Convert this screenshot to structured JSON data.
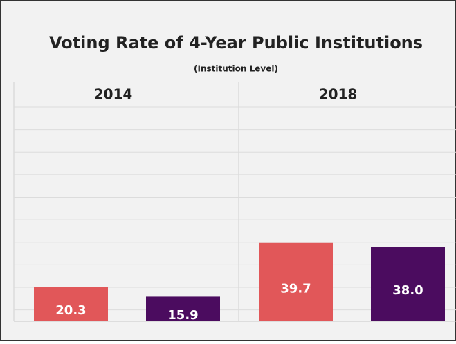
{
  "chart_data": {
    "type": "bar",
    "title": "Voting Rate of 4-Year Public Institutions",
    "subtitle": "(Institution Level)",
    "facets": [
      "2014",
      "2018"
    ],
    "series": [
      {
        "color": "#e15759",
        "values": [
          20.3,
          39.7
        ]
      },
      {
        "color": "#4b0c5f",
        "values": [
          15.9,
          38.0
        ],
        "value_labels": [
          "15.9",
          "38.0"
        ]
      }
    ],
    "ylim": [
      5,
      100
    ],
    "yticks": [
      10,
      20,
      30,
      40,
      50,
      60,
      70,
      80,
      90,
      100
    ],
    "grid": true
  }
}
